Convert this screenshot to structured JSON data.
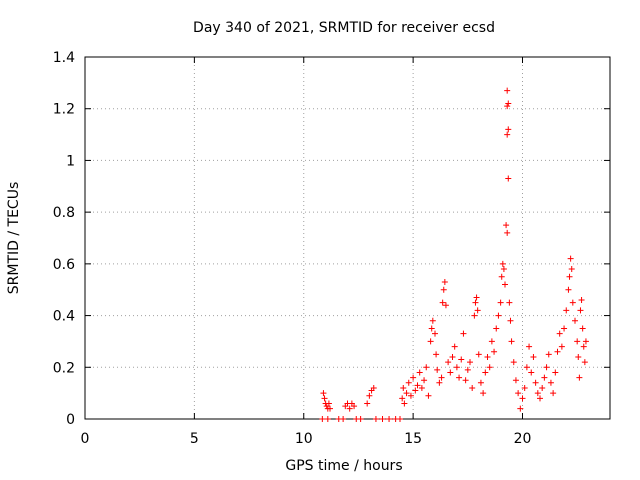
{
  "chart_data": {
    "type": "scatter",
    "title": "Day 340 of 2021, SRMTID for receiver ecsd",
    "xlabel": "GPS time / hours",
    "ylabel": "SRMTID / TECUs",
    "xlim": [
      0,
      24
    ],
    "ylim": [
      0,
      1.4
    ],
    "xticks": [
      0,
      5,
      10,
      15,
      20
    ],
    "yticks": [
      0,
      0.2,
      0.4,
      0.6,
      0.8,
      1,
      1.2,
      1.4
    ],
    "xtick_labels": [
      "0",
      "5",
      "10",
      "15",
      "20"
    ],
    "ytick_labels": [
      "0",
      "0.2",
      "0.4",
      "0.6",
      "0.8",
      "1",
      "1.2",
      "1.4"
    ],
    "grid": true,
    "marker": "+",
    "color": "#ff0000",
    "series": [
      {
        "name": "SRMTID",
        "points": [
          [
            10.9,
            0.1
          ],
          [
            10.95,
            0.08
          ],
          [
            11.0,
            0.06
          ],
          [
            11.05,
            0.05
          ],
          [
            11.1,
            0.04
          ],
          [
            11.15,
            0.06
          ],
          [
            11.2,
            0.04
          ],
          [
            10.85,
            0.0
          ],
          [
            11.1,
            0.0
          ],
          [
            11.6,
            0.0
          ],
          [
            11.8,
            0.0
          ],
          [
            11.9,
            0.05
          ],
          [
            12.0,
            0.06
          ],
          [
            12.1,
            0.04
          ],
          [
            12.2,
            0.06
          ],
          [
            12.3,
            0.05
          ],
          [
            12.4,
            0.0
          ],
          [
            12.6,
            0.0
          ],
          [
            12.9,
            0.06
          ],
          [
            13.0,
            0.09
          ],
          [
            13.1,
            0.11
          ],
          [
            13.2,
            0.12
          ],
          [
            13.3,
            0.0
          ],
          [
            13.6,
            0.0
          ],
          [
            13.9,
            0.0
          ],
          [
            14.2,
            0.0
          ],
          [
            14.4,
            0.0
          ],
          [
            14.5,
            0.08
          ],
          [
            14.55,
            0.12
          ],
          [
            14.6,
            0.06
          ],
          [
            14.7,
            0.1
          ],
          [
            14.8,
            0.14
          ],
          [
            14.9,
            0.09
          ],
          [
            15.0,
            0.16
          ],
          [
            15.1,
            0.11
          ],
          [
            15.2,
            0.13
          ],
          [
            15.3,
            0.18
          ],
          [
            15.4,
            0.12
          ],
          [
            15.5,
            0.15
          ],
          [
            15.6,
            0.2
          ],
          [
            15.7,
            0.09
          ],
          [
            15.8,
            0.3
          ],
          [
            15.85,
            0.35
          ],
          [
            15.9,
            0.38
          ],
          [
            16.0,
            0.33
          ],
          [
            16.05,
            0.25
          ],
          [
            16.1,
            0.19
          ],
          [
            16.2,
            0.14
          ],
          [
            16.3,
            0.16
          ],
          [
            16.35,
            0.45
          ],
          [
            16.4,
            0.5
          ],
          [
            16.45,
            0.53
          ],
          [
            16.5,
            0.44
          ],
          [
            16.6,
            0.22
          ],
          [
            16.7,
            0.18
          ],
          [
            16.8,
            0.24
          ],
          [
            16.9,
            0.28
          ],
          [
            17.0,
            0.2
          ],
          [
            17.1,
            0.16
          ],
          [
            17.2,
            0.23
          ],
          [
            17.3,
            0.33
          ],
          [
            17.4,
            0.15
          ],
          [
            17.5,
            0.19
          ],
          [
            17.6,
            0.22
          ],
          [
            17.7,
            0.12
          ],
          [
            17.8,
            0.4
          ],
          [
            17.85,
            0.45
          ],
          [
            17.9,
            0.47
          ],
          [
            17.95,
            0.42
          ],
          [
            18.0,
            0.25
          ],
          [
            18.1,
            0.14
          ],
          [
            18.2,
            0.1
          ],
          [
            18.3,
            0.18
          ],
          [
            18.4,
            0.24
          ],
          [
            18.5,
            0.2
          ],
          [
            18.6,
            0.3
          ],
          [
            18.7,
            0.26
          ],
          [
            18.8,
            0.35
          ],
          [
            18.9,
            0.4
          ],
          [
            19.0,
            0.45
          ],
          [
            19.05,
            0.55
          ],
          [
            19.1,
            0.6
          ],
          [
            19.15,
            0.58
          ],
          [
            19.2,
            0.52
          ],
          [
            19.25,
            0.75
          ],
          [
            19.3,
            0.72
          ],
          [
            19.35,
            0.93
          ],
          [
            19.3,
            1.1
          ],
          [
            19.35,
            1.12
          ],
          [
            19.3,
            1.21
          ],
          [
            19.35,
            1.22
          ],
          [
            19.3,
            1.27
          ],
          [
            19.4,
            0.45
          ],
          [
            19.45,
            0.38
          ],
          [
            19.5,
            0.3
          ],
          [
            19.6,
            0.22
          ],
          [
            19.7,
            0.15
          ],
          [
            19.8,
            0.1
          ],
          [
            19.9,
            0.04
          ],
          [
            20.0,
            0.08
          ],
          [
            20.1,
            0.12
          ],
          [
            20.2,
            0.2
          ],
          [
            20.3,
            0.28
          ],
          [
            20.4,
            0.18
          ],
          [
            20.5,
            0.24
          ],
          [
            20.6,
            0.14
          ],
          [
            20.7,
            0.1
          ],
          [
            20.8,
            0.08
          ],
          [
            20.9,
            0.12
          ],
          [
            21.0,
            0.16
          ],
          [
            21.1,
            0.2
          ],
          [
            21.2,
            0.25
          ],
          [
            21.3,
            0.14
          ],
          [
            21.4,
            0.1
          ],
          [
            21.5,
            0.18
          ],
          [
            21.6,
            0.26
          ],
          [
            21.7,
            0.33
          ],
          [
            21.8,
            0.28
          ],
          [
            21.9,
            0.35
          ],
          [
            22.0,
            0.42
          ],
          [
            22.1,
            0.5
          ],
          [
            22.15,
            0.55
          ],
          [
            22.2,
            0.62
          ],
          [
            22.25,
            0.58
          ],
          [
            22.3,
            0.45
          ],
          [
            22.4,
            0.38
          ],
          [
            22.5,
            0.3
          ],
          [
            22.55,
            0.24
          ],
          [
            22.6,
            0.16
          ],
          [
            22.65,
            0.42
          ],
          [
            22.7,
            0.46
          ],
          [
            22.75,
            0.35
          ],
          [
            22.8,
            0.28
          ],
          [
            22.85,
            0.22
          ],
          [
            22.9,
            0.3
          ]
        ]
      }
    ]
  }
}
